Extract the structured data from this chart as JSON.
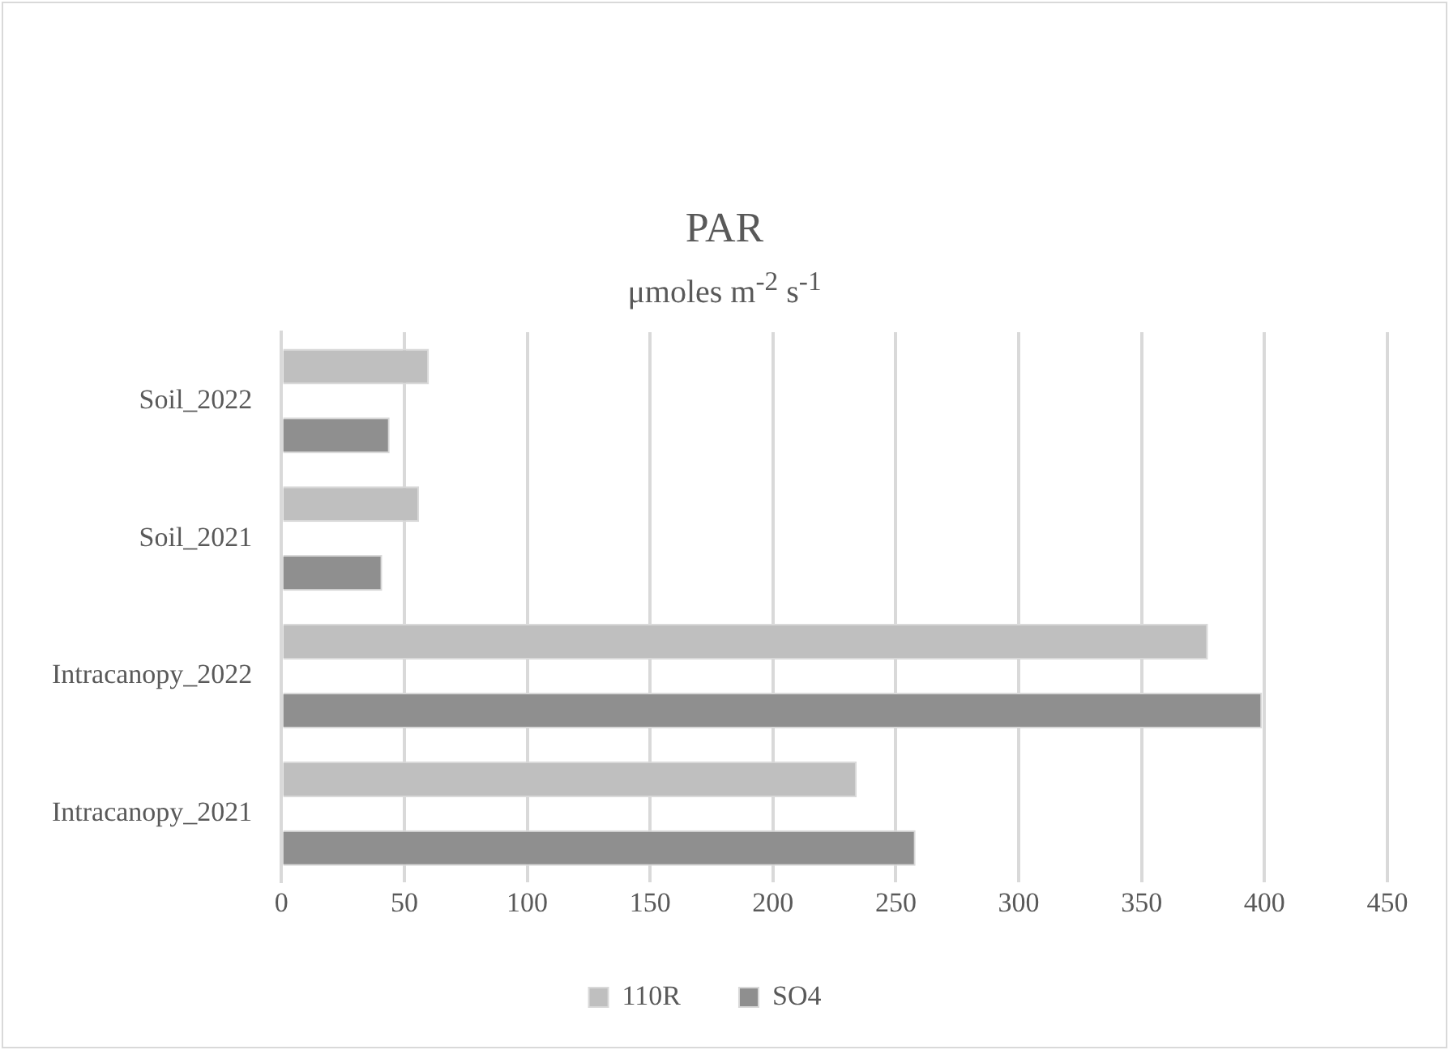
{
  "chart_data": {
    "type": "bar",
    "orientation": "horizontal",
    "title": "PAR",
    "subtitle": "μmoles m$^{-2}$ s$^{-1}$",
    "categories": [
      "Soil_2022",
      "Soil_2021",
      "Intracanopy_2022",
      "Intracanopy_2021"
    ],
    "series": [
      {
        "name": "110R",
        "color": "#bfbfbf",
        "values": [
          60,
          56,
          377,
          234
        ]
      },
      {
        "name": "SO4",
        "color": "#8f8f8f",
        "values": [
          44,
          41,
          399,
          258
        ]
      }
    ],
    "xlim": [
      0,
      450
    ],
    "xticks": [
      0,
      50,
      100,
      150,
      200,
      250,
      300,
      350,
      400,
      450
    ],
    "grid": "x",
    "legend": "bottom"
  }
}
